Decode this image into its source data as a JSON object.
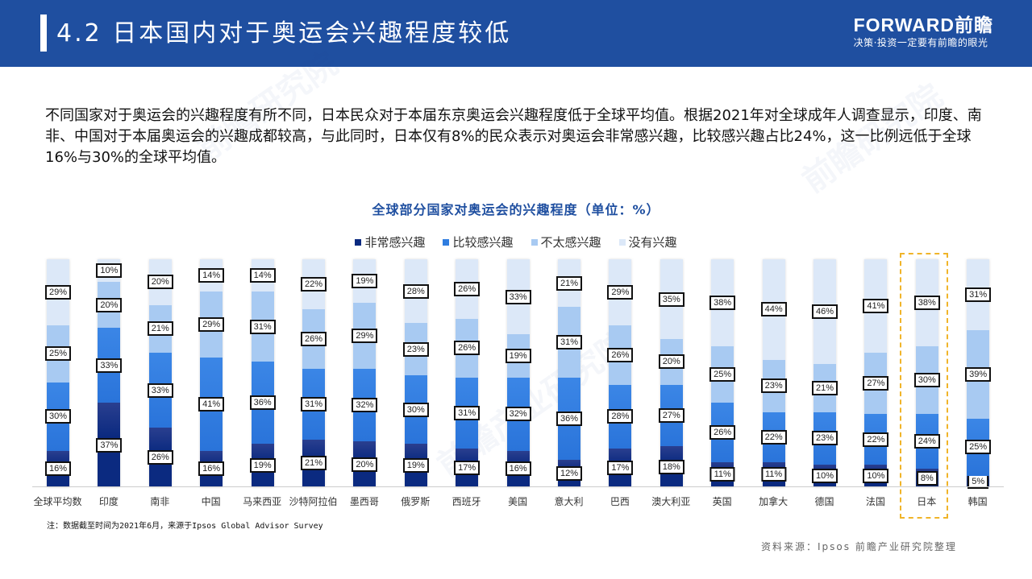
{
  "header": {
    "title": "4.2 日本国内对于奥运会兴趣程度较低",
    "logo_brand": "FORWARD前瞻",
    "logo_tagline": "决策·投资一定要有前瞻的眼光"
  },
  "intro_text": "不同国家对于奥运会的兴趣程度有所不同，日本民众对于本届东京奥运会兴趣程度低于全球平均值。根据2021年对全球成年人调查显示，印度、南非、中国对于本届奥运会的兴趣成都较高，与此同时，日本仅有8%的民众表示对奥运会非常感兴趣，比较感兴趣占比24%，这一比例远低于全球16%与30%的全球平均值。",
  "colors": {
    "header_bg": "#1f4fa0",
    "very": "#0b2a80",
    "fairly": "#2f7de0",
    "not_very": "#a8caf2",
    "none": "#dce8f8",
    "highlight": "#f0b429"
  },
  "chart_data": {
    "type": "bar",
    "stacked": true,
    "percent_stacked": true,
    "title": "全球部分国家对奥运会的兴趣程度（单位：%）",
    "xlabel": "",
    "ylabel": "",
    "ylim": [
      0,
      100
    ],
    "grid": false,
    "legend_position": "top",
    "categories": [
      "全球平均数",
      "印度",
      "南非",
      "中国",
      "马来西亚",
      "沙特阿拉伯",
      "墨西哥",
      "俄罗斯",
      "西班牙",
      "美国",
      "意大利",
      "巴西",
      "澳大利亚",
      "英国",
      "加拿大",
      "德国",
      "法国",
      "日本",
      "韩国"
    ],
    "series": [
      {
        "name": "非常感兴趣",
        "values": [
          16,
          37,
          26,
          16,
          19,
          21,
          20,
          19,
          17,
          16,
          12,
          17,
          18,
          11,
          11,
          10,
          10,
          8,
          5
        ]
      },
      {
        "name": "比较感兴趣",
        "values": [
          30,
          33,
          33,
          41,
          36,
          31,
          32,
          30,
          31,
          32,
          36,
          28,
          27,
          26,
          22,
          23,
          22,
          24,
          25
        ]
      },
      {
        "name": "不太感兴趣",
        "values": [
          25,
          20,
          21,
          29,
          31,
          26,
          29,
          23,
          26,
          19,
          31,
          26,
          20,
          25,
          23,
          21,
          27,
          30,
          39
        ]
      },
      {
        "name": "没有兴趣",
        "values": [
          29,
          10,
          20,
          14,
          14,
          22,
          19,
          28,
          26,
          33,
          21,
          29,
          35,
          38,
          44,
          46,
          41,
          38,
          31
        ]
      }
    ],
    "annotations": [
      "日本 column highlighted with dashed yellow box"
    ]
  },
  "footnote": "注：数据截至时间为2021年6月，来源于Ipsos Global Advisor Survey",
  "source": "资料来源：Ipsos 前瞻产业研究院整理"
}
